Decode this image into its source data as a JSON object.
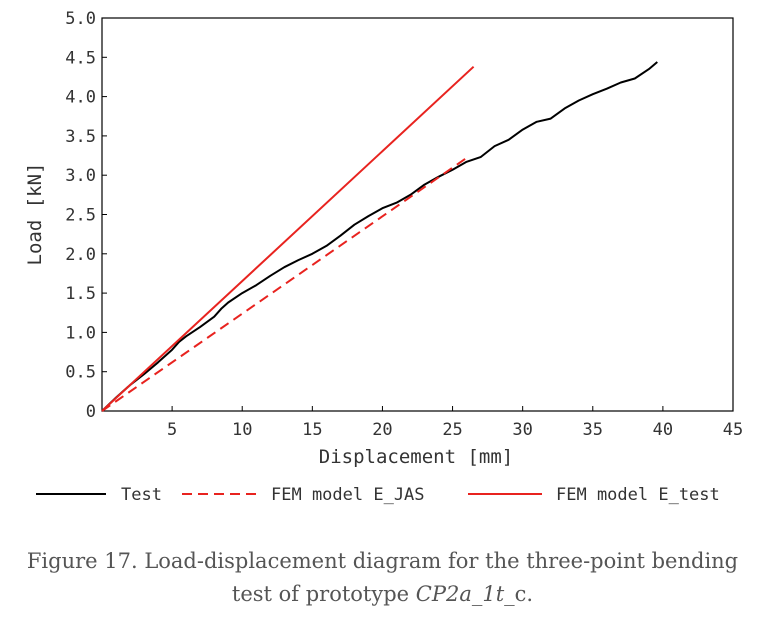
{
  "chart_data": {
    "type": "line",
    "xlabel": "Displacement [mm]",
    "ylabel": "Load [kN]",
    "xlim": [
      0,
      45
    ],
    "ylim": [
      0,
      5.0
    ],
    "x_ticks": [
      5,
      10,
      15,
      20,
      25,
      30,
      35,
      40,
      45
    ],
    "x_tick_labels": [
      "5",
      "10",
      "15",
      "20",
      "25",
      "30",
      "35",
      "40",
      "45"
    ],
    "y_ticks": [
      0,
      0.5,
      1.0,
      1.5,
      2.0,
      2.5,
      3.0,
      3.5,
      4.0,
      4.5,
      5.0
    ],
    "y_tick_labels": [
      "0",
      "0.5",
      "1.0",
      "1.5",
      "2.0",
      "2.5",
      "3.0",
      "3.5",
      "4.0",
      "4.5",
      "5.0"
    ],
    "grid": false,
    "legend_position": "bottom",
    "series": [
      {
        "name": "Test",
        "color": "#000000",
        "style": "solid",
        "x": [
          0,
          1,
          2,
          3,
          4,
          5,
          5.5,
          6,
          7,
          8,
          8.5,
          9,
          10,
          11,
          12,
          13,
          14,
          15,
          16,
          17,
          18,
          19,
          20,
          21,
          22,
          23,
          24,
          25,
          26,
          27,
          28,
          29,
          30,
          31,
          32,
          33,
          34,
          35,
          36,
          37,
          38,
          39,
          39.6
        ],
        "y": [
          0,
          0.17,
          0.33,
          0.47,
          0.62,
          0.78,
          0.88,
          0.95,
          1.07,
          1.2,
          1.3,
          1.38,
          1.5,
          1.6,
          1.72,
          1.83,
          1.92,
          2.0,
          2.1,
          2.23,
          2.37,
          2.48,
          2.58,
          2.65,
          2.75,
          2.88,
          2.98,
          3.07,
          3.17,
          3.23,
          3.37,
          3.45,
          3.58,
          3.68,
          3.72,
          3.85,
          3.95,
          4.03,
          4.1,
          4.18,
          4.23,
          4.35,
          4.44
        ]
      },
      {
        "name": "FEM model E_JAS",
        "color": "#e8231f",
        "style": "dashed",
        "x": [
          0,
          26
        ],
        "y": [
          0,
          3.22
        ]
      },
      {
        "name": "FEM model E_test",
        "color": "#e8231f",
        "style": "solid",
        "x": [
          0,
          26.5
        ],
        "y": [
          0,
          4.38
        ]
      }
    ]
  },
  "caption": {
    "line1": "Figure 17. Load-displacement diagram for the three-point bending",
    "line2_prefix": "test of prototype ",
    "line2_italic": "CP2a_1t",
    "line2_suffix": "_c."
  }
}
